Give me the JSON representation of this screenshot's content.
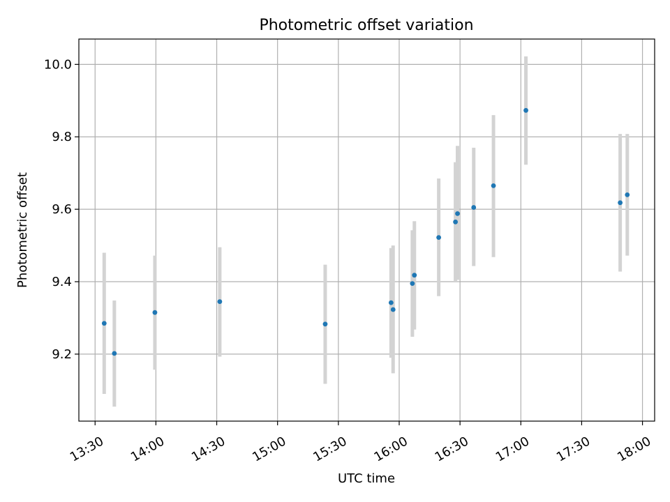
{
  "chart_data": {
    "type": "scatter",
    "title": "Photometric offset variation",
    "xlabel": "UTC time",
    "ylabel": "Photometric offset",
    "x_ticks": [
      "13:30",
      "14:00",
      "14:30",
      "15:00",
      "15:30",
      "16:00",
      "16:30",
      "17:00",
      "17:30",
      "18:00"
    ],
    "y_ticks": [
      "9.2",
      "9.4",
      "9.6",
      "9.8",
      "10.0"
    ],
    "xlim": [
      "13:22",
      "18:06"
    ],
    "ylim": [
      9.015,
      10.07
    ],
    "grid": true,
    "point_color": "#1f77b4",
    "errorbar_color": "#d3d3d3",
    "points": [
      {
        "x": "13:34:30",
        "y": 9.285,
        "err_low": 9.09,
        "err_high": 9.48
      },
      {
        "x": "13:39:30",
        "y": 9.202,
        "err_low": 9.055,
        "err_high": 9.348
      },
      {
        "x": "13:59:30",
        "y": 9.315,
        "err_low": 9.157,
        "err_high": 9.472
      },
      {
        "x": "14:31:30",
        "y": 9.345,
        "err_low": 9.193,
        "err_high": 9.495
      },
      {
        "x": "15:23:30",
        "y": 9.283,
        "err_low": 9.118,
        "err_high": 9.447
      },
      {
        "x": "15:56:00",
        "y": 9.342,
        "err_low": 9.19,
        "err_high": 9.493
      },
      {
        "x": "15:57:00",
        "y": 9.323,
        "err_low": 9.147,
        "err_high": 9.5
      },
      {
        "x": "16:06:30",
        "y": 9.395,
        "err_low": 9.248,
        "err_high": 9.542
      },
      {
        "x": "16:07:30",
        "y": 9.418,
        "err_low": 9.268,
        "err_high": 9.567
      },
      {
        "x": "16:19:30",
        "y": 9.522,
        "err_low": 9.36,
        "err_high": 9.685
      },
      {
        "x": "16:27:45",
        "y": 9.565,
        "err_low": 9.4,
        "err_high": 9.73
      },
      {
        "x": "16:28:45",
        "y": 9.588,
        "err_low": 9.405,
        "err_high": 9.775
      },
      {
        "x": "16:36:45",
        "y": 9.605,
        "err_low": 9.443,
        "err_high": 9.77
      },
      {
        "x": "16:46:30",
        "y": 9.665,
        "err_low": 9.468,
        "err_high": 9.86
      },
      {
        "x": "17:02:30",
        "y": 9.873,
        "err_low": 9.723,
        "err_high": 10.022
      },
      {
        "x": "17:49:00",
        "y": 9.618,
        "err_low": 9.428,
        "err_high": 9.808
      },
      {
        "x": "17:52:30",
        "y": 9.64,
        "err_low": 9.472,
        "err_high": 9.808
      }
    ]
  }
}
